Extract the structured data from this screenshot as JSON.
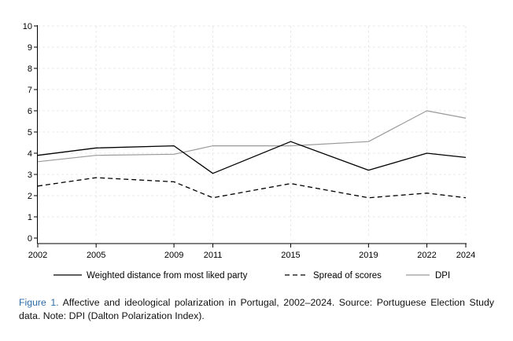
{
  "chart_data": {
    "type": "line",
    "x": [
      2002,
      2005,
      2009,
      2011,
      2015,
      2019,
      2022,
      2024
    ],
    "series": [
      {
        "name": "Weighted distance from most liked party",
        "values": [
          3.9,
          4.25,
          4.35,
          3.05,
          4.55,
          3.2,
          4.0,
          3.8
        ],
        "color": "#000000",
        "dash": "solid"
      },
      {
        "name": "Spread of scores",
        "values": [
          2.45,
          2.85,
          2.65,
          1.9,
          2.57,
          1.9,
          2.12,
          1.9
        ],
        "color": "#000000",
        "dash": "dashed"
      },
      {
        "name": "DPI",
        "values": [
          3.6,
          3.9,
          3.95,
          4.35,
          4.35,
          4.55,
          6.0,
          5.65
        ],
        "color": "#9a9a9a",
        "dash": "solid"
      }
    ],
    "yticks": [
      0,
      1,
      2,
      3,
      4,
      5,
      6,
      7,
      8,
      9,
      10
    ],
    "xticks": [
      2002,
      2005,
      2009,
      2011,
      2015,
      2019,
      2022,
      2024
    ],
    "ylim": [
      0,
      10
    ],
    "xlim": [
      2002,
      2024
    ],
    "grid": "horizontal dashed",
    "legend_position": "bottom"
  },
  "caption": {
    "label": "Figure 1.",
    "text": "Affective and ideological polarization in Portugal, 2002–2024. Source: Portuguese Election Study data. Note: DPI (Dalton Polarization Index)."
  }
}
